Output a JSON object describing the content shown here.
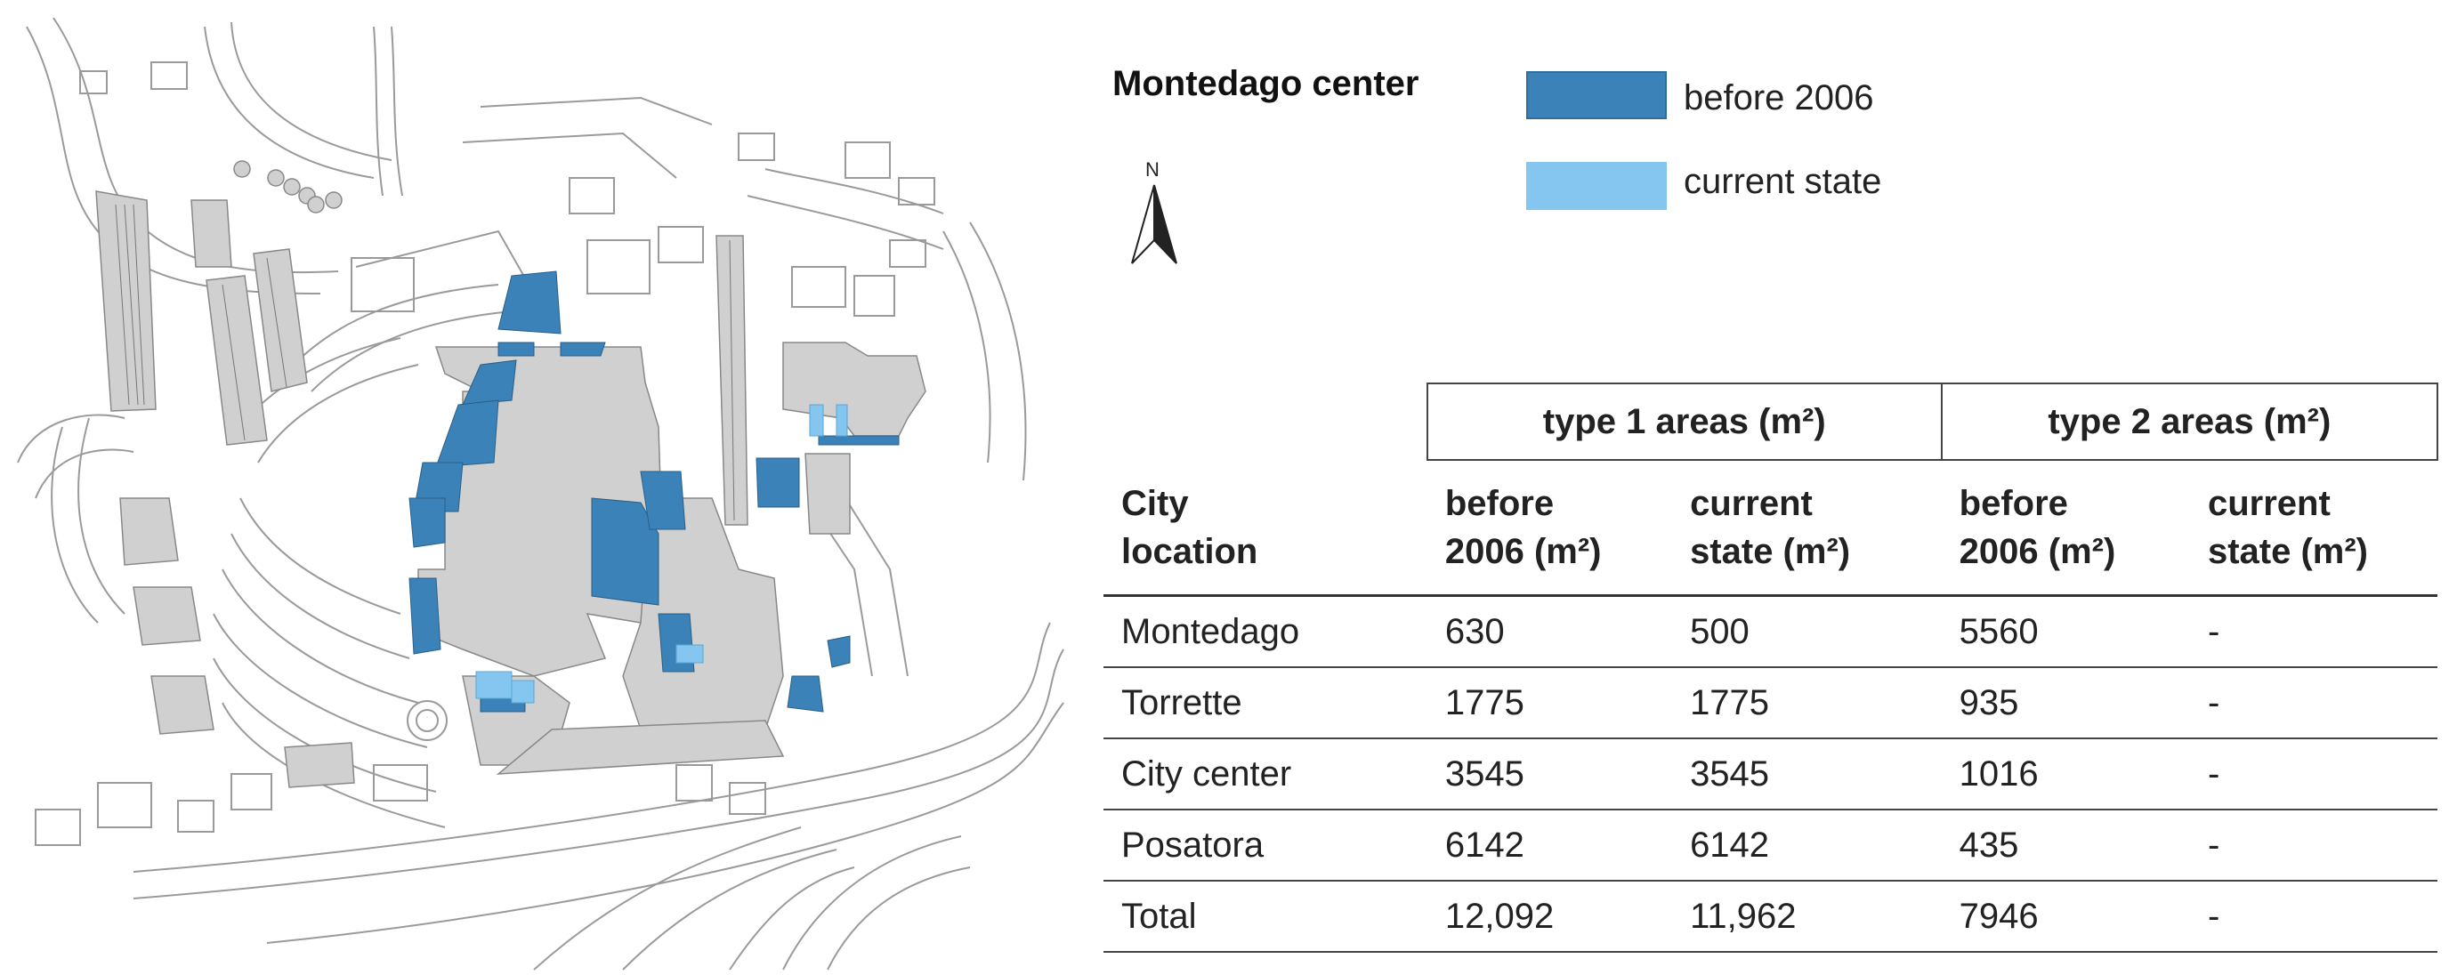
{
  "legend": {
    "title": "Montedago center",
    "items": [
      {
        "label": "before 2006",
        "color": "#3a82b7"
      },
      {
        "label": "current state",
        "color": "#84c6f0"
      }
    ]
  },
  "north_arrow": {
    "label": "N"
  },
  "map": {
    "building_color": "#d0d0d0",
    "line_color": "#9a9a9a"
  },
  "table": {
    "group_headers": [
      "type 1 areas (m²)",
      "type 2 areas (m²)"
    ],
    "columns": [
      "City\nlocation",
      "before\n2006 (m²)",
      "current\nstate (m²)",
      "before\n2006 (m²)",
      "current\nstate (m²)"
    ],
    "rows": [
      [
        "Montedago",
        "630",
        "500",
        "5560",
        "-"
      ],
      [
        "Torrette",
        "1775",
        "1775",
        "935",
        "-"
      ],
      [
        "City center",
        "3545",
        "3545",
        "1016",
        "-"
      ],
      [
        "Posatora",
        "6142",
        "6142",
        "435",
        "-"
      ],
      [
        "Total",
        "12,092",
        "11,962",
        "7946",
        "-"
      ]
    ]
  }
}
